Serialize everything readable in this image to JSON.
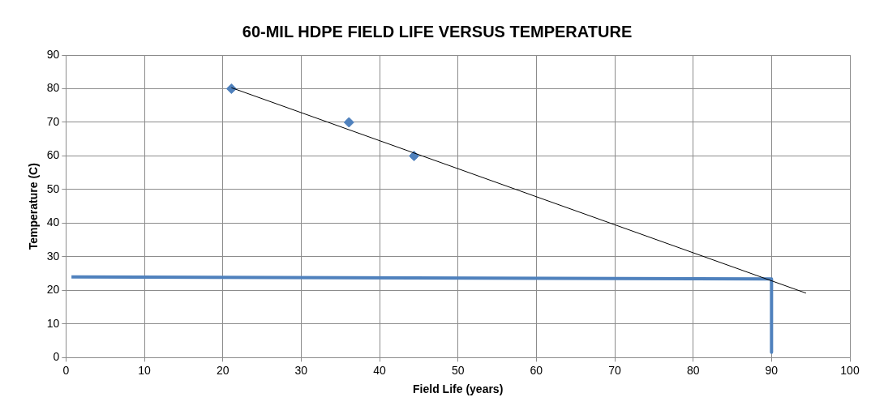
{
  "chart_data": {
    "type": "scatter",
    "title": "60-MIL HDPE FIELD LIFE VERSUS TEMPERATURE",
    "xlabel": "Field Life (years)",
    "ylabel": "Temperature (C)",
    "xlim": [
      0,
      100
    ],
    "xticks": [
      0,
      10,
      20,
      30,
      40,
      50,
      60,
      70,
      80,
      90,
      100
    ],
    "ylim": [
      0,
      90
    ],
    "yticks": [
      0,
      10,
      20,
      30,
      40,
      50,
      60,
      70,
      80,
      90
    ],
    "grid": true,
    "legend": false,
    "series": [
      {
        "type": "scatter",
        "color": "#4f81bd",
        "marker": "diamond",
        "x": [
          21.1,
          36.1,
          44.4
        ],
        "values": [
          80,
          70,
          60
        ]
      },
      {
        "type": "line",
        "color": "#000000",
        "marker": "none",
        "x": [
          21.1,
          94.4
        ],
        "values": [
          80.3,
          19.2
        ]
      },
      {
        "type": "line",
        "color": "#4f81bd",
        "marker": "none",
        "x": [
          0.7,
          90,
          90
        ],
        "values": [
          24,
          23.4,
          1.6
        ]
      }
    ]
  }
}
